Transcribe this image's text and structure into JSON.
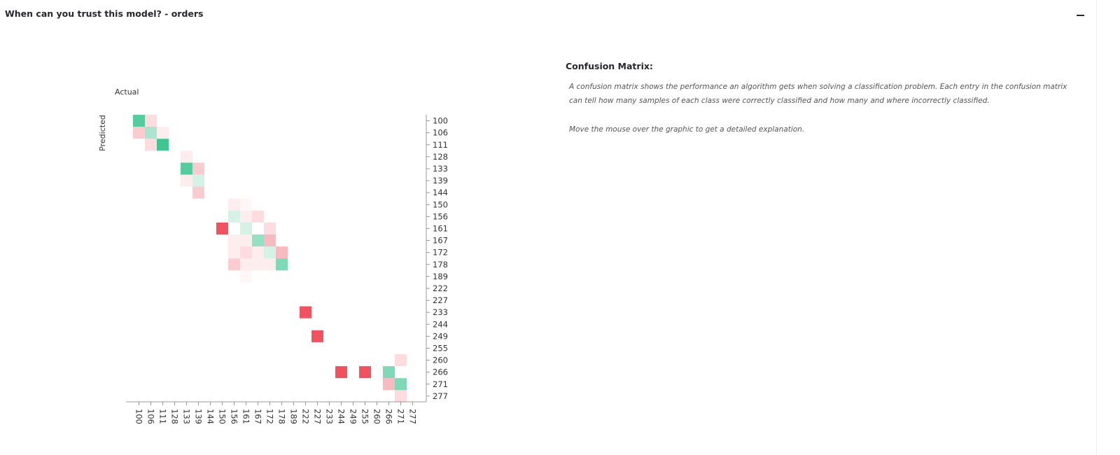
{
  "header": {
    "title": "When can you trust this model? - orders"
  },
  "panel": {
    "title": "Confusion Matrix:",
    "paragraphs": [
      "A confusion matrix shows the performance an algorithm gets when solving a classification problem. Each entry in the confusion matrix can tell how many samples of each class were correctly classified and how many and where incorrectly classified.",
      "Move the mouse over the graphic to get a detailed explanation."
    ]
  },
  "chart_data": {
    "type": "heatmap",
    "xlabel": "Actual",
    "ylabel": "Predicted",
    "categories": [
      "100",
      "106",
      "111",
      "128",
      "133",
      "139",
      "144",
      "150",
      "156",
      "161",
      "167",
      "172",
      "178",
      "189",
      "222",
      "227",
      "233",
      "244",
      "249",
      "255",
      "260",
      "266",
      "271",
      "277"
    ],
    "correct_color": "#2bbf86",
    "error_color": "#f0525f",
    "cells": [
      {
        "x": "100",
        "y": "100",
        "value": 8
      },
      {
        "x": "106",
        "y": "100",
        "value": 2
      },
      {
        "x": "100",
        "y": "106",
        "value": 3
      },
      {
        "x": "106",
        "y": "106",
        "value": 4
      },
      {
        "x": "111",
        "y": "106",
        "value": 1
      },
      {
        "x": "106",
        "y": "111",
        "value": 2
      },
      {
        "x": "111",
        "y": "111",
        "value": 9
      },
      {
        "x": "133",
        "y": "128",
        "value": 1
      },
      {
        "x": "133",
        "y": "133",
        "value": 8
      },
      {
        "x": "139",
        "y": "133",
        "value": 3
      },
      {
        "x": "133",
        "y": "139",
        "value": 1
      },
      {
        "x": "139",
        "y": "139",
        "value": 2
      },
      {
        "x": "139",
        "y": "144",
        "value": 3
      },
      {
        "x": "156",
        "y": "150",
        "value": 1
      },
      {
        "x": "161",
        "y": "150",
        "value": 0.5
      },
      {
        "x": "156",
        "y": "156",
        "value": 2
      },
      {
        "x": "161",
        "y": "156",
        "value": 1
      },
      {
        "x": "167",
        "y": "156",
        "value": 2
      },
      {
        "x": "150",
        "y": "161",
        "value": 10
      },
      {
        "x": "161",
        "y": "161",
        "value": 2
      },
      {
        "x": "172",
        "y": "161",
        "value": 2
      },
      {
        "x": "156",
        "y": "167",
        "value": 1
      },
      {
        "x": "161",
        "y": "167",
        "value": 1
      },
      {
        "x": "167",
        "y": "167",
        "value": 5
      },
      {
        "x": "172",
        "y": "167",
        "value": 4
      },
      {
        "x": "156",
        "y": "172",
        "value": 1
      },
      {
        "x": "161",
        "y": "172",
        "value": 2
      },
      {
        "x": "167",
        "y": "172",
        "value": 1
      },
      {
        "x": "172",
        "y": "172",
        "value": 2
      },
      {
        "x": "178",
        "y": "172",
        "value": 4
      },
      {
        "x": "156",
        "y": "178",
        "value": 3
      },
      {
        "x": "161",
        "y": "178",
        "value": 1
      },
      {
        "x": "167",
        "y": "178",
        "value": 1
      },
      {
        "x": "172",
        "y": "178",
        "value": 1
      },
      {
        "x": "178",
        "y": "178",
        "value": 6
      },
      {
        "x": "161",
        "y": "189",
        "value": 0.5
      },
      {
        "x": "222",
        "y": "233",
        "value": 10
      },
      {
        "x": "227",
        "y": "249",
        "value": 10
      },
      {
        "x": "271",
        "y": "260",
        "value": 2
      },
      {
        "x": "244",
        "y": "266",
        "value": 10
      },
      {
        "x": "255",
        "y": "266",
        "value": 10
      },
      {
        "x": "266",
        "y": "266",
        "value": 6
      },
      {
        "x": "266",
        "y": "271",
        "value": 4
      },
      {
        "x": "271",
        "y": "271",
        "value": 6
      },
      {
        "x": "271",
        "y": "277",
        "value": 2
      }
    ]
  }
}
